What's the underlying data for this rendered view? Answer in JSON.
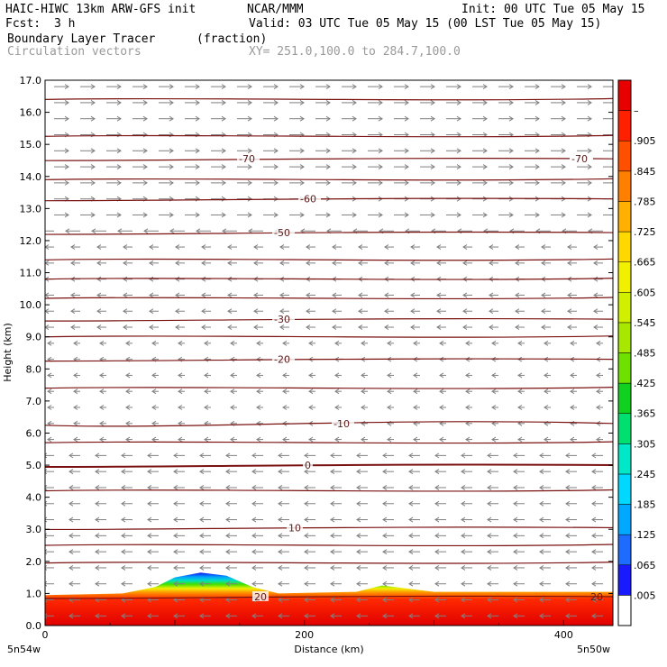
{
  "header": {
    "model": "HAIC-HIWC 13km ARW-GFS init",
    "org": "NCAR/MMM",
    "init": "Init: 00 UTC Tue 05 May 15",
    "fcst_label": "Fcst:",
    "fcst_value": "3 h",
    "valid": "Valid: 03 UTC Tue 05 May 15 (00 LST Tue 05 May 15)",
    "field": "Boundary Layer Tracer",
    "units": "(fraction)",
    "vectors": "Circulation vectors",
    "xy": "XY= 251.0,100.0 to 284.7,100.0"
  },
  "chart_data": {
    "type": "heatmap",
    "title": "Boundary Layer Tracer",
    "xlabel": "Distance (km)",
    "ylabel": "Height (km)",
    "xlim": [
      0,
      438
    ],
    "ylim": [
      0,
      17
    ],
    "x_ticks": [
      "0",
      "200",
      "400"
    ],
    "x_end_labels": [
      "5n54w",
      "5n50w"
    ],
    "y_ticks": [
      "0.0",
      "1.0",
      "2.0",
      "3.0",
      "4.0",
      "5.0",
      "6.0",
      "7.0",
      "8.0",
      "9.0",
      "10.0",
      "11.0",
      "12.0",
      "13.0",
      "14.0",
      "15.0",
      "16.0",
      "17.0"
    ],
    "colorbar": {
      "labels": [
        ".005",
        ".065",
        ".125",
        ".185",
        ".245",
        ".305",
        ".365",
        ".425",
        ".485",
        ".545",
        ".605",
        ".665",
        ".725",
        ".785",
        ".845",
        ".905",
        "–"
      ],
      "colors": [
        "#ffffff",
        "#1a1aff",
        "#1e6bff",
        "#00a8ff",
        "#00d8ff",
        "#00e8c8",
        "#00e070",
        "#10d020",
        "#70e000",
        "#a8e800",
        "#d0f000",
        "#f0f000",
        "#ffd800",
        "#ffb000",
        "#ff8000",
        "#ff5000",
        "#ff2000",
        "#e80000"
      ]
    },
    "temperature_contours": [
      {
        "label": "-70",
        "height_km": 14.55
      },
      {
        "label": "-60",
        "height_km": 13.3
      },
      {
        "label": "-50",
        "height_km": 12.25
      },
      {
        "label": "-30",
        "height_km": 9.55
      },
      {
        "label": "-20",
        "height_km": 8.3
      },
      {
        "label": "-10",
        "height_km": 6.3
      },
      {
        "label": "0",
        "height_km": 5.0
      },
      {
        "label": "10",
        "height_km": 3.05
      },
      {
        "label": "20",
        "height_km": 0.9
      }
    ],
    "tracer_profile": [
      {
        "x": 0,
        "top_km": 0.95
      },
      {
        "x": 60,
        "top_km": 1.0
      },
      {
        "x": 85,
        "top_km": 1.2
      },
      {
        "x": 100,
        "top_km": 1.5
      },
      {
        "x": 120,
        "top_km": 1.65
      },
      {
        "x": 140,
        "top_km": 1.55
      },
      {
        "x": 160,
        "top_km": 1.2
      },
      {
        "x": 180,
        "top_km": 1.0
      },
      {
        "x": 240,
        "top_km": 1.05
      },
      {
        "x": 260,
        "top_km": 1.25
      },
      {
        "x": 280,
        "top_km": 1.15
      },
      {
        "x": 300,
        "top_km": 1.05
      },
      {
        "x": 400,
        "top_km": 1.05
      },
      {
        "x": 438,
        "top_km": 1.05
      }
    ]
  }
}
